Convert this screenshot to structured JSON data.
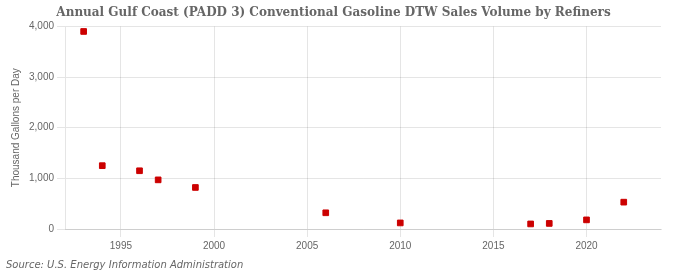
{
  "chart_data": {
    "type": "scatter",
    "title": "Annual Gulf Coast (PADD 3) Conventional Gasoline DTW Sales Volume by Refiners",
    "ylabel": "Thousand Gallons per Day",
    "source": "Source: U.S. Energy Information Administration",
    "x": [
      1993,
      1994,
      1996,
      1997,
      1999,
      2006,
      2010,
      2017,
      2018,
      2020,
      2022
    ],
    "values": [
      3900,
      1250,
      1150,
      970,
      820,
      320,
      120,
      100,
      110,
      180,
      530
    ],
    "color": "#cc0000",
    "marker": "square",
    "xlim": [
      1992,
      2024
    ],
    "ylim": [
      0,
      4000
    ],
    "xticks": [
      1995,
      2000,
      2005,
      2010,
      2015,
      2020
    ],
    "yticks": [
      0,
      {
        "value": 1000,
        "label": "1,000"
      },
      {
        "value": 2000,
        "label": "2,000"
      },
      {
        "value": 3000,
        "label": "3,000"
      },
      {
        "value": 4000,
        "label": "4,000"
      }
    ],
    "grid": true
  }
}
